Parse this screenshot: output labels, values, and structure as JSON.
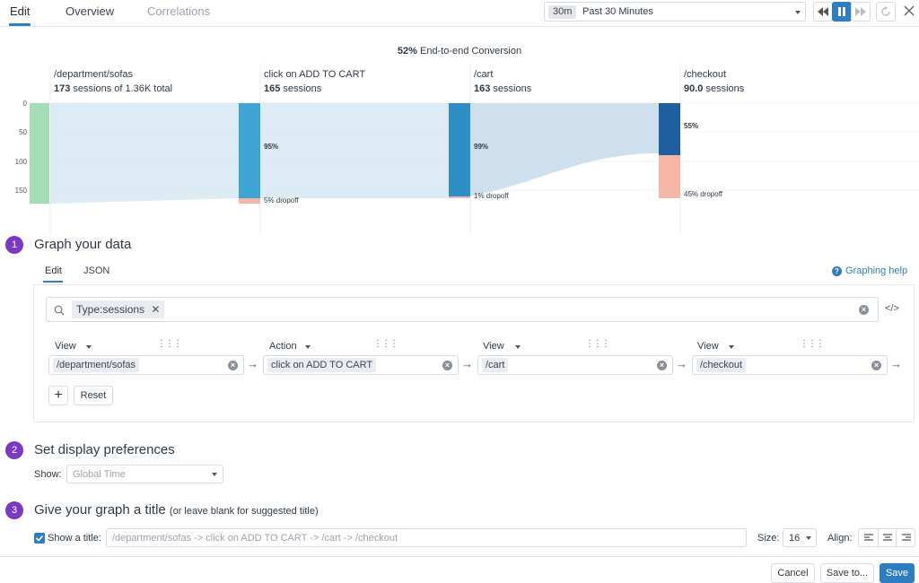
{
  "tabs": [
    {
      "label": "Edit",
      "active": true
    },
    {
      "label": "Overview",
      "active": false
    },
    {
      "label": "Correlations",
      "active": false
    }
  ],
  "time_selector": {
    "badge": "30m",
    "label": "Past 30 Minutes"
  },
  "funnel": {
    "conversion_pct": "52%",
    "conversion_label": "End-to-end Conversion",
    "y_ticks": [
      "0",
      "50",
      "100",
      "150"
    ],
    "steps": [
      {
        "title": "/department/sofas",
        "count": "173",
        "sub": "sessions of 1.36K total"
      },
      {
        "title": "click on ADD TO CART",
        "count": "165",
        "sub": "sessions",
        "kept": "95%",
        "dropoff": "5% dropoff"
      },
      {
        "title": "/cart",
        "count": "163",
        "sub": "sessions",
        "kept": "99%",
        "dropoff": "1% dropoff"
      },
      {
        "title": "/checkout",
        "count": "90.0",
        "sub": "sessions",
        "kept": "55%",
        "dropoff": "45% dropoff"
      }
    ],
    "colors": {
      "green": "#a4dcb4",
      "blue": "#3ea4d4",
      "blue2": "#2e8fc4",
      "dark": "#1f5fa0",
      "drop": "#f6b6a7",
      "flow": "#cfe3ef"
    }
  },
  "section1": {
    "num": "1",
    "title": "Graph your data",
    "tabs": [
      "Edit",
      "JSON"
    ],
    "help": "Graphing help",
    "search_tag": "Type:sessions",
    "steps": [
      {
        "type": "View",
        "value": "/department/sofas"
      },
      {
        "type": "Action",
        "value": "click on ADD TO CART"
      },
      {
        "type": "View",
        "value": "/cart"
      },
      {
        "type": "View",
        "value": "/checkout"
      }
    ],
    "reset": "Reset"
  },
  "section2": {
    "num": "2",
    "title": "Set display preferences",
    "show_label": "Show:",
    "show_value": "Global Time"
  },
  "section3": {
    "num": "3",
    "title": "Give your graph a title",
    "title_hint": "(or leave blank for suggested title)",
    "show_title_label": "Show a title:",
    "title_placeholder": "/department/sofas -> click on ADD TO CART -> /cart -> /checkout",
    "size_label": "Size:",
    "size_value": "16",
    "align_label": "Align:"
  },
  "footer": {
    "cancel": "Cancel",
    "save_to": "Save to...",
    "save": "Save"
  }
}
